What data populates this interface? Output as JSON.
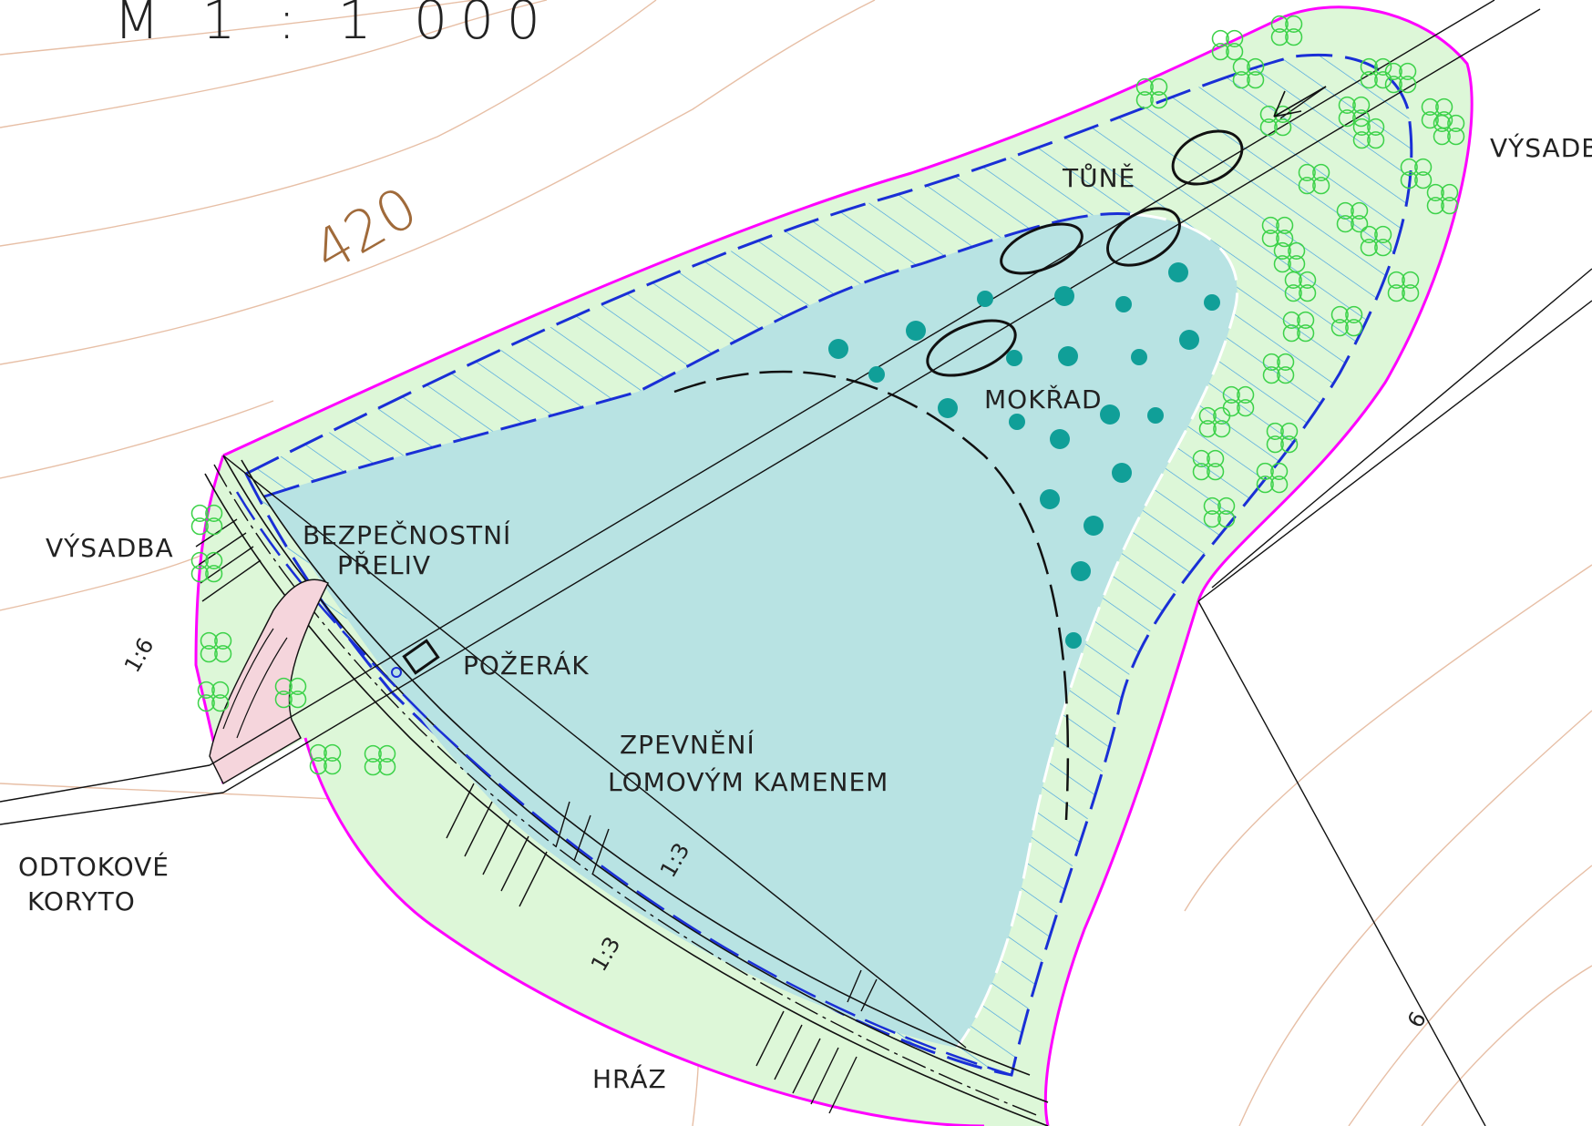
{
  "map": {
    "scale_text": "M 1 : 1 000",
    "contour_label": "420",
    "contour_label_right": "6",
    "labels": {
      "tune": "TŮNĚ",
      "mokrad": "MOKŘAD",
      "vysadba_left": "VÝSADBA",
      "vysadba_right": "VÝSADBA",
      "bezpecnostni": "BEZPEČNOSTNÍ",
      "preliv": "PŘELIV",
      "pozerak": "POŽERÁK",
      "zpevneni": "ZPEVNĚNÍ",
      "lomovym": "LOMOVÝM KAMENEM",
      "odtokove": "ODTOKOVÉ",
      "koryto": "KORYTO",
      "hraz": "HRÁZ",
      "slope_1_6": "1:6",
      "slope_1_3_a": "1:3",
      "slope_1_3_b": "1:3"
    },
    "colors": {
      "boundary": "#ff00ff",
      "planting": "#ddf7d8",
      "water": "#b8e3e3",
      "wetland_dots": "#109f98",
      "dashed_outline": "#1a2fd6",
      "hatch": "#3f9de0",
      "contours": "#e7bfa6",
      "outlet": "#f5d5dc"
    }
  }
}
